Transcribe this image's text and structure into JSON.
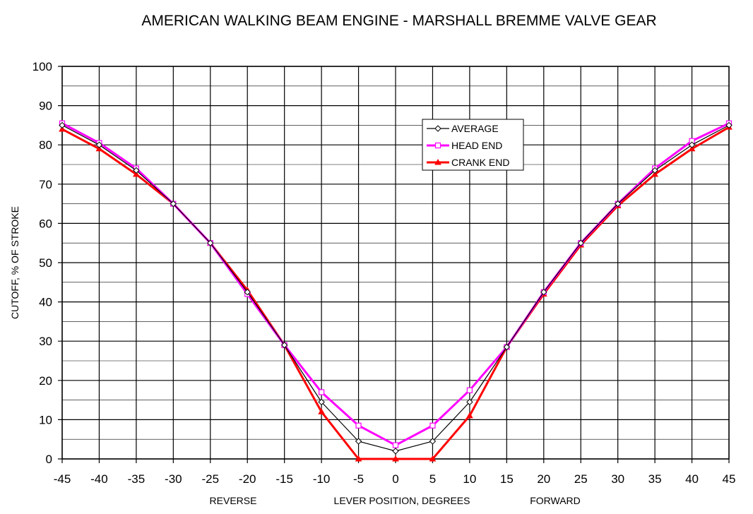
{
  "chart_data": {
    "type": "line",
    "title": "AMERICAN WALKING BEAM ENGINE - MARSHALL BREMME VALVE GEAR",
    "xlabel": "LEVER POSITION, DEGREES",
    "x_side_labels": {
      "left": "REVERSE",
      "right": "FORWARD"
    },
    "ylabel": "CUTOFF, % OF STROKE",
    "xlim": [
      -45,
      45
    ],
    "ylim": [
      0,
      100
    ],
    "x_ticks": [
      -45,
      -40,
      -35,
      -30,
      -25,
      -20,
      -15,
      -10,
      -5,
      0,
      5,
      10,
      15,
      20,
      25,
      30,
      35,
      40,
      45
    ],
    "y_ticks": [
      0,
      10,
      20,
      30,
      40,
      50,
      60,
      70,
      80,
      90,
      100
    ],
    "grid": true,
    "legend": "top-right",
    "x": [
      -45,
      -40,
      -35,
      -30,
      -25,
      -20,
      -15,
      -10,
      -5,
      0,
      5,
      10,
      15,
      20,
      25,
      30,
      35,
      40,
      45
    ],
    "series": [
      {
        "name": "AVERAGE",
        "color": "#000000",
        "marker": "diamond",
        "values": [
          85,
          80,
          73.5,
          65,
          55,
          42.5,
          29,
          14.5,
          4.5,
          2,
          4.5,
          14.5,
          28.5,
          42.5,
          55,
          65,
          73.5,
          80,
          85
        ]
      },
      {
        "name": "HEAD END",
        "color": "#ff00ff",
        "marker": "square",
        "values": [
          85.5,
          80.5,
          74,
          65,
          55,
          42,
          29,
          17,
          8.5,
          3.5,
          8.5,
          17.5,
          28.5,
          42.5,
          55,
          65,
          74,
          81,
          85.5
        ]
      },
      {
        "name": "CRANK END",
        "color": "#ff0000",
        "marker": "triangle",
        "values": [
          84,
          79,
          72.5,
          65,
          55,
          43,
          29,
          12,
          0,
          0,
          0,
          11,
          28.5,
          42,
          54.5,
          64.5,
          72.5,
          79,
          84.5
        ]
      }
    ]
  }
}
